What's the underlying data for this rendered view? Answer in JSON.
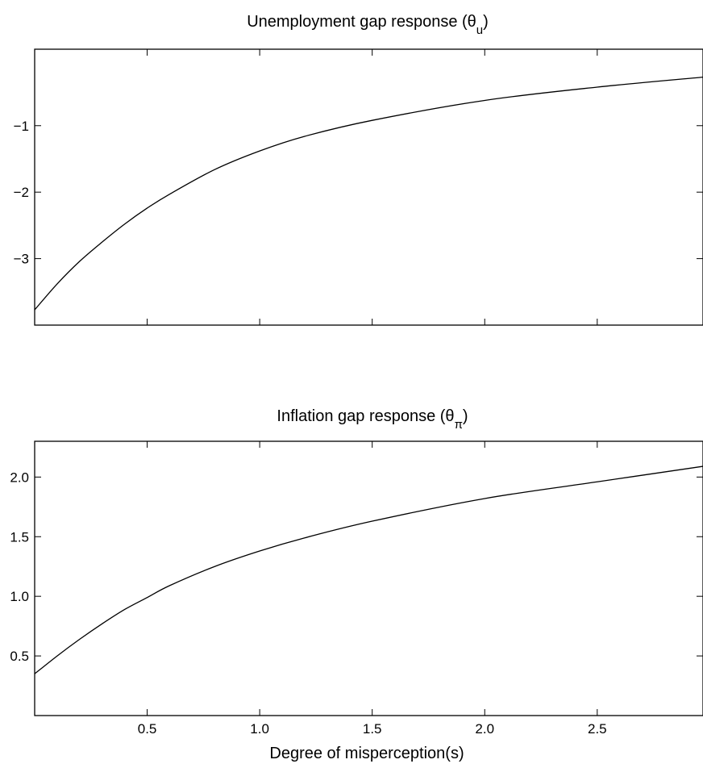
{
  "chart_data": [
    {
      "type": "line",
      "title": "Unemployment gap response (θ",
      "title_subscript": "u",
      "title_close": ")",
      "xlabel": "",
      "ylabel": "",
      "xlim": [
        0,
        2.97
      ],
      "ylim": [
        -4.0,
        0.15
      ],
      "xticks": [
        0.5,
        1.0,
        1.5,
        2.0,
        2.5
      ],
      "xtick_labels_shown": false,
      "yticks": [
        -1,
        -2,
        -3
      ],
      "ytick_labels": [
        "−1",
        "−2",
        "−3"
      ],
      "grid": false,
      "series": [
        {
          "x": [
            0.0,
            0.1,
            0.2,
            0.3,
            0.4,
            0.5,
            0.6,
            0.8,
            1.0,
            1.2,
            1.5,
            2.0,
            2.5,
            2.97
          ],
          "y": [
            -3.77,
            -3.38,
            -3.04,
            -2.75,
            -2.48,
            -2.24,
            -2.03,
            -1.66,
            -1.38,
            -1.16,
            -0.92,
            -0.62,
            -0.42,
            -0.27
          ]
        }
      ]
    },
    {
      "type": "line",
      "title": "Inflation gap response (θ",
      "title_subscript": "π",
      "title_close": ")",
      "xlabel": "Degree of misperception(s)",
      "ylabel": "",
      "xlim": [
        0,
        2.97
      ],
      "ylim": [
        0.0,
        2.3
      ],
      "xticks": [
        0.5,
        1.0,
        1.5,
        2.0,
        2.5
      ],
      "xtick_labels": [
        "0.5",
        "1.0",
        "1.5",
        "2.0",
        "2.5"
      ],
      "yticks": [
        0.5,
        1.0,
        1.5,
        2.0
      ],
      "ytick_labels": [
        "0.5",
        "1.0",
        "1.5",
        "2.0"
      ],
      "grid": false,
      "series": [
        {
          "x": [
            0.0,
            0.1,
            0.2,
            0.3,
            0.4,
            0.5,
            0.6,
            0.8,
            1.0,
            1.2,
            1.5,
            2.0,
            2.5,
            2.97
          ],
          "y": [
            0.35,
            0.5,
            0.64,
            0.77,
            0.89,
            0.99,
            1.09,
            1.25,
            1.38,
            1.49,
            1.63,
            1.82,
            1.96,
            2.09
          ]
        }
      ]
    }
  ]
}
